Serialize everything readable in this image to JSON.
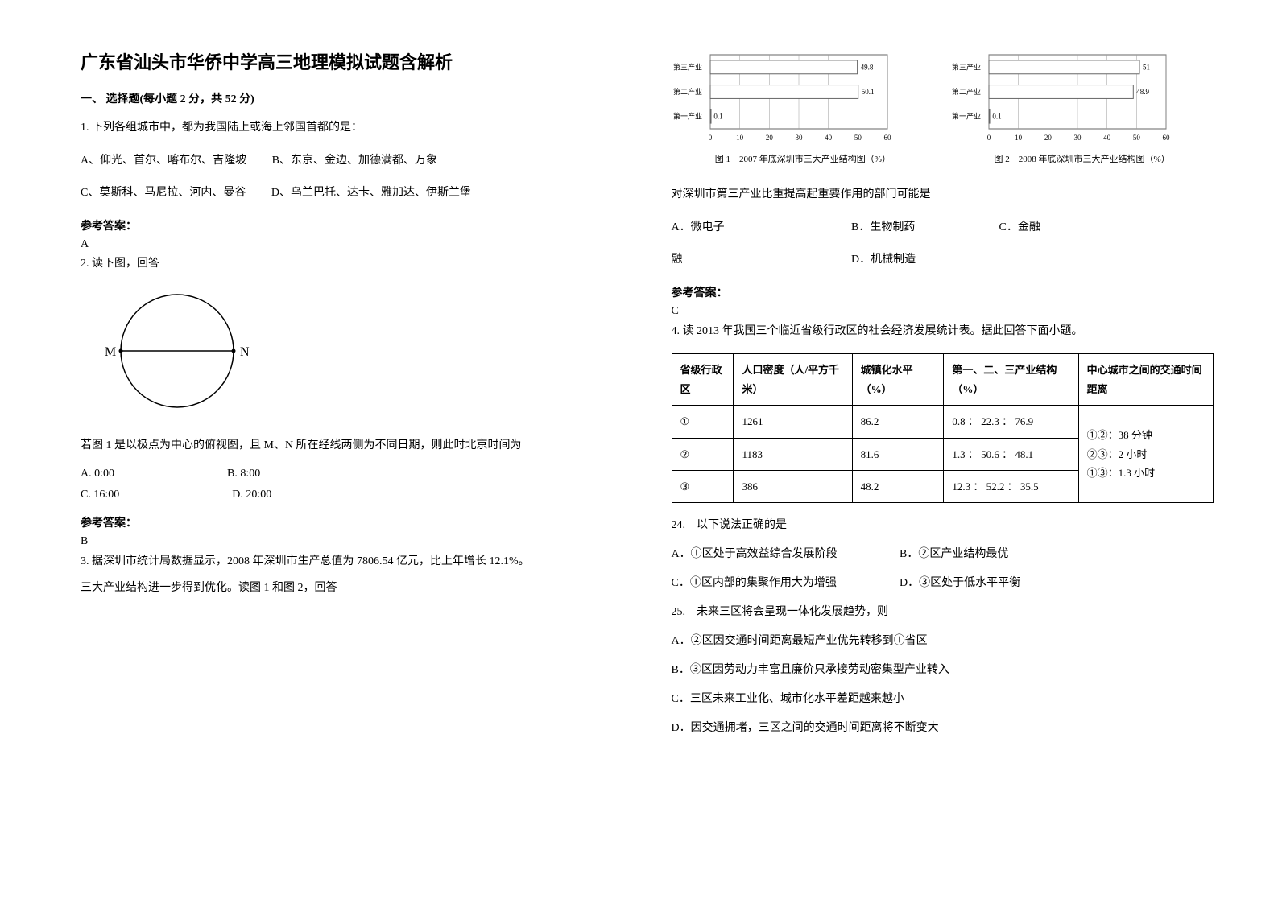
{
  "title": "广东省汕头市华侨中学高三地理模拟试题含解析",
  "section1": "一、 选择题(每小题 2 分，共 52 分)",
  "q1": {
    "stem": "1. 下列各组城市中，都为我国陆上或海上邻国首都的是：",
    "optA": "A、仰光、首尔、喀布尔、吉隆坡",
    "optB": "B、东京、金边、加德满都、万象",
    "optC": "C、莫斯科、马尼拉、河内、曼谷",
    "optD": "D、乌兰巴托、达卡、雅加达、伊斯兰堡"
  },
  "ans_label": "参考答案：",
  "q1_ans": "A",
  "q2": {
    "stem": "2. 读下图，回答",
    "fig": {
      "M": "M",
      "N": "N",
      "stroke": "#000000",
      "r": 70
    },
    "cond": "若图 1 是以极点为中心的俯视图，且 M、N 所在经线两侧为不同日期，则此时北京时间为",
    "optA": "A. 0:00",
    "optB": "B. 8:00",
    "optC": "C. 16:00",
    "optD": "D. 20:00"
  },
  "q2_ans": "B",
  "q3": {
    "stem1": "3. 据深圳市统计局数据显示，2008 年深圳市生产总值为 7806.54 亿元，比上年增长 12.1%。",
    "stem2": "三大产业结构进一步得到优化。读图 1 和图 2，回答",
    "chart1": {
      "caption": "图 1　2007 年底深圳市三大产业结构图（%）",
      "labels": [
        "第一产业",
        "第二产业",
        "第三产业"
      ],
      "values": [
        0.1,
        50.1,
        49.8
      ],
      "xmax": 60,
      "xticks": [
        0,
        10,
        20,
        30,
        40,
        50,
        60
      ],
      "bar_color": "#ffffff",
      "border_color": "#666666",
      "grid_color": "#999999",
      "bg": "#ffffff",
      "label_fontsize": 9
    },
    "chart2": {
      "caption": "图 2　2008 年底深圳市三大产业结构图（%）",
      "labels": [
        "第一产业",
        "第二产业",
        "第三产业"
      ],
      "values": [
        0.1,
        48.9,
        51
      ],
      "xmax": 60,
      "xticks": [
        0,
        10,
        20,
        30,
        40,
        50,
        60
      ],
      "bar_color": "#ffffff",
      "border_color": "#666666",
      "grid_color": "#999999",
      "bg": "#ffffff",
      "label_fontsize": 9
    },
    "subq": "对深圳市第三产业比重提高起重要作用的部门可能是",
    "optA": "A．微电子",
    "optB": "B．生物制药",
    "optC": "C．金融",
    "optD": "D．机械制造"
  },
  "q3_ans": "C",
  "q4": {
    "stem": "4. 读 2013 年我国三个临近省级行政区的社会经济发展统计表。据此回答下面小题。",
    "table": {
      "columns": [
        "省级行政区",
        "人口密度（人/平方千米）",
        "城镇化水平（%）",
        "第一、二、三产业结构（%）",
        "中心城市之间的交通时间距离"
      ],
      "rows": [
        [
          "①",
          "1261",
          "86.2",
          "0.8 ： 22.3 ： 76.9"
        ],
        [
          "②",
          "1183",
          "81.6",
          "1.3 ： 50.6 ： 48.1"
        ],
        [
          "③",
          "386",
          "48.2",
          "12.3 ： 52.2 ： 35.5"
        ]
      ],
      "distance_cell": "①②：38 分钟\n②③：2 小时\n①③：1.3 小时"
    },
    "q24": {
      "stem": "24.　以下说法正确的是",
      "optA": "A．①区处于高效益综合发展阶段",
      "optB": "B．②区产业结构最优",
      "optC": "C．①区内部的集聚作用大为增强",
      "optD": "D．③区处于低水平平衡"
    },
    "q25": {
      "stem": "25.　未来三区将会呈现一体化发展趋势，则",
      "optA": "A．②区因交通时间距离最短产业优先转移到①省区",
      "optB": "B．③区因劳动力丰富且廉价只承接劳动密集型产业转入",
      "optC": "C．三区未来工业化、城市化水平差距越来越小",
      "optD": "D．因交通拥堵，三区之间的交通时间距离将不断变大"
    }
  }
}
